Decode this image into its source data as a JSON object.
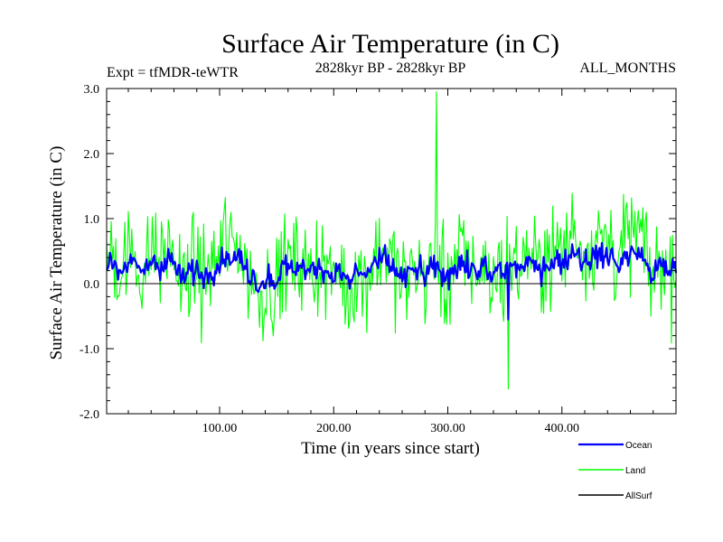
{
  "chart_data": {
    "type": "line",
    "title": "Surface Air Temperature (in C)",
    "subtitle_left": "Expt = tfMDR-teWTR",
    "subtitle_center": "2828kyr BP - 2828kyr BP",
    "subtitle_right": "ALL_MONTHS",
    "xlabel": "Time (in years since start)",
    "ylabel": "Surface Air Temperature (in C)",
    "xlim": [
      1,
      500
    ],
    "ylim": [
      -2.0,
      3.0
    ],
    "x_ticks": [
      100,
      200,
      300,
      400
    ],
    "x_tick_labels": [
      "100.00",
      "200.00",
      "300.00",
      "400.00"
    ],
    "y_ticks": [
      -2.0,
      -1.0,
      0.0,
      1.0,
      2.0,
      3.0
    ],
    "y_tick_labels": [
      "-2.0",
      "-1.0",
      "0.0",
      "1.0",
      "2.0",
      "3.0"
    ],
    "zero_line": true,
    "legend_position": "bottom-right",
    "series": [
      {
        "name": "Land",
        "color": "#00ff00",
        "mean": 0.25,
        "spread": 0.75,
        "min": -1.65,
        "max": 2.95,
        "peak_year": 290,
        "peak_value": 2.95,
        "dip_year": 353,
        "dip_value": -1.62
      },
      {
        "name": "Ocean",
        "color": "#0000ff",
        "mean": 0.22,
        "spread": 0.18,
        "min": -0.55,
        "max": 0.65,
        "dip_year": 353,
        "dip_value": -0.55
      },
      {
        "name": "AllSurf",
        "color": "#000000",
        "mean": 0.0,
        "spread": 0.0,
        "min": 0.0,
        "max": 0.0
      }
    ],
    "legend": [
      {
        "name": "Ocean",
        "color": "#0000ff"
      },
      {
        "name": "Land",
        "color": "#00ff00"
      },
      {
        "name": "AllSurf",
        "color": "#000000"
      }
    ]
  }
}
